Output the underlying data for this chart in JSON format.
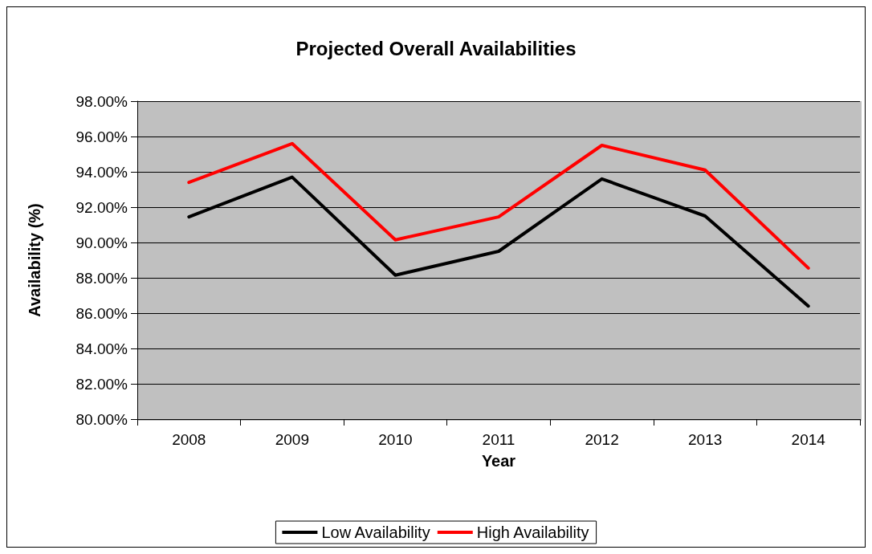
{
  "chart_data": {
    "type": "line",
    "title": "Projected Overall Availabilities",
    "xlabel": "Year",
    "ylabel": "Availability (%)",
    "categories": [
      "2008",
      "2009",
      "2010",
      "2011",
      "2012",
      "2013",
      "2014"
    ],
    "series": [
      {
        "name": "Low Availability",
        "color": "#000000",
        "values": [
          91.45,
          93.7,
          88.15,
          89.5,
          93.6,
          91.5,
          86.4
        ]
      },
      {
        "name": "High Availability",
        "color": "#ff0000",
        "values": [
          93.4,
          95.6,
          90.15,
          91.45,
          95.5,
          94.1,
          88.55
        ]
      }
    ],
    "ylim": [
      80,
      98
    ],
    "yticks": [
      {
        "value": 80,
        "label": "80.00%"
      },
      {
        "value": 82,
        "label": "82.00%"
      },
      {
        "value": 84,
        "label": "84.00%"
      },
      {
        "value": 86,
        "label": "86.00%"
      },
      {
        "value": 88,
        "label": "88.00%"
      },
      {
        "value": 90,
        "label": "90.00%"
      },
      {
        "value": 92,
        "label": "92.00%"
      },
      {
        "value": 94,
        "label": "94.00%"
      },
      {
        "value": 96,
        "label": "96.00%"
      },
      {
        "value": 98,
        "label": "98.00%"
      }
    ],
    "grid": "y",
    "legend": "bottom",
    "marker": "none",
    "line_style": "solid"
  }
}
